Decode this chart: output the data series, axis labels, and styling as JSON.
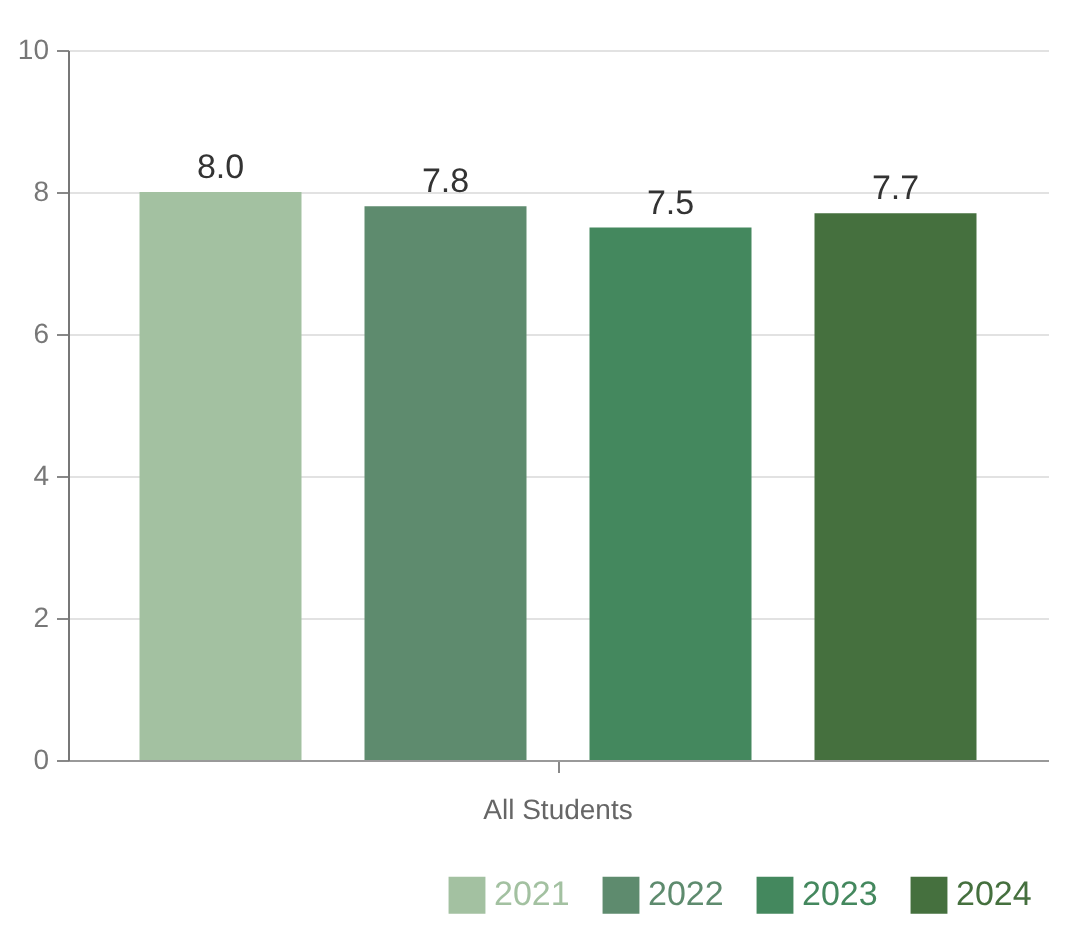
{
  "chart_data": {
    "type": "bar",
    "categories": [
      "All Students"
    ],
    "series": [
      {
        "name": "2021",
        "color": "#a3c1a1",
        "values": [
          8.0
        ],
        "value_labels": [
          "8.0"
        ]
      },
      {
        "name": "2022",
        "color": "#5e8b6e",
        "values": [
          7.8
        ],
        "value_labels": [
          "7.8"
        ]
      },
      {
        "name": "2023",
        "color": "#44885e",
        "values": [
          7.5
        ],
        "value_labels": [
          "7.5"
        ]
      },
      {
        "name": "2024",
        "color": "#45703e",
        "values": [
          7.7
        ],
        "value_labels": [
          "7.7"
        ]
      }
    ],
    "ylim": [
      0,
      10
    ],
    "yticks": [
      0,
      2,
      4,
      6,
      8,
      10
    ],
    "grid": "y",
    "legend": "bottom right"
  }
}
